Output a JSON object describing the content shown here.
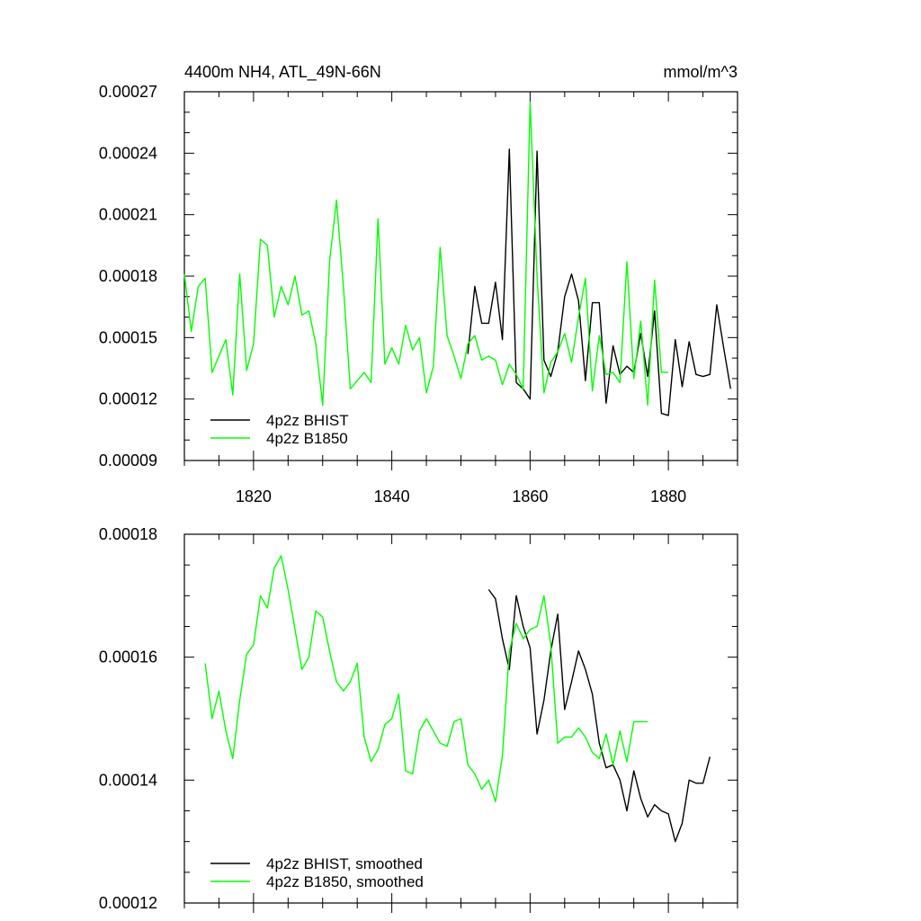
{
  "chart_data": [
    {
      "type": "line",
      "title": "4400m NH4, ATL_49N-66N",
      "units": "mmol/m^3",
      "xlabel": "",
      "ylabel": "",
      "xlim": [
        1810,
        1890
      ],
      "ylim": [
        9e-05,
        0.00027
      ],
      "yticks": [
        "0.00009",
        "0.00012",
        "0.00015",
        "0.00018",
        "0.00021",
        "0.00024",
        "0.00027"
      ],
      "xticks": [
        "1820",
        "1840",
        "1860",
        "1880"
      ],
      "legend_position": "bottom-left",
      "series": [
        {
          "name": "4p2z BHIST",
          "color": "#000000",
          "x": [
            1851,
            1852,
            1853,
            1854,
            1855,
            1856,
            1857,
            1858,
            1859,
            1860,
            1861,
            1862,
            1863,
            1864,
            1865,
            1866,
            1867,
            1868,
            1869,
            1870,
            1871,
            1872,
            1873,
            1874,
            1875,
            1876,
            1877,
            1878,
            1879,
            1880,
            1881,
            1882,
            1883,
            1884,
            1885,
            1886,
            1887,
            1888,
            1889
          ],
          "values": [
            0.000142,
            0.000175,
            0.000157,
            0.000157,
            0.000177,
            0.000149,
            0.000242,
            0.000128,
            0.000125,
            0.00012,
            0.000241,
            0.000139,
            0.000131,
            0.000143,
            0.00017,
            0.000181,
            0.000168,
            0.000129,
            0.000167,
            0.000167,
            0.000118,
            0.000146,
            0.000132,
            0.000136,
            0.000133,
            0.000152,
            0.000131,
            0.000163,
            0.000113,
            0.000112,
            0.000149,
            0.000126,
            0.000148,
            0.000132,
            0.000131,
            0.000132,
            0.000166,
            0.000145,
            0.000125
          ]
        },
        {
          "name": "4p2z B1850",
          "color": "#00ff00",
          "x": [
            1810,
            1811,
            1812,
            1813,
            1814,
            1815,
            1816,
            1817,
            1818,
            1819,
            1820,
            1821,
            1822,
            1823,
            1824,
            1825,
            1826,
            1827,
            1828,
            1829,
            1830,
            1831,
            1832,
            1833,
            1834,
            1835,
            1836,
            1837,
            1838,
            1839,
            1840,
            1841,
            1842,
            1843,
            1844,
            1845,
            1846,
            1847,
            1848,
            1849,
            1850,
            1851,
            1852,
            1853,
            1854,
            1855,
            1856,
            1857,
            1858,
            1859,
            1860,
            1861,
            1862,
            1863,
            1864,
            1865,
            1866,
            1867,
            1868,
            1869,
            1870,
            1871,
            1872,
            1873,
            1874,
            1875,
            1876,
            1877,
            1878,
            1879,
            1880
          ],
          "values": [
            0.000181,
            0.000153,
            0.000175,
            0.000179,
            0.000133,
            0.000141,
            0.000149,
            0.000122,
            0.000181,
            0.000134,
            0.000147,
            0.000198,
            0.000195,
            0.00016,
            0.000175,
            0.000166,
            0.00018,
            0.000161,
            0.000163,
            0.000147,
            0.000117,
            0.000187,
            0.000217,
            0.000175,
            0.000125,
            0.000129,
            0.000133,
            0.000128,
            0.000208,
            0.000137,
            0.000145,
            0.000137,
            0.000156,
            0.000144,
            0.00015,
            0.000123,
            0.000136,
            0.000194,
            0.000151,
            0.000141,
            0.00013,
            0.000147,
            0.000151,
            0.000139,
            0.000141,
            0.000139,
            0.000127,
            0.000137,
            0.000132,
            0.000125,
            0.000265,
            0.00018,
            0.000123,
            0.000138,
            0.000143,
            0.000152,
            0.000138,
            0.00016,
            0.000179,
            0.000124,
            0.000151,
            0.000132,
            0.000133,
            0.000128,
            0.000187,
            0.00013,
            0.000158,
            0.000117,
            0.000178,
            0.000133,
            0.000133
          ]
        }
      ]
    },
    {
      "type": "line",
      "title": "",
      "xlabel": "",
      "ylabel": "",
      "xlim": [
        1810,
        1890
      ],
      "ylim": [
        0.00012,
        0.00018
      ],
      "yticks": [
        "0.00012",
        "0.00014",
        "0.00016",
        "0.00018"
      ],
      "legend_position": "bottom-left",
      "series": [
        {
          "name": "4p2z BHIST, smoothed",
          "color": "#000000",
          "x": [
            1854,
            1855,
            1856,
            1857,
            1858,
            1859,
            1860,
            1861,
            1862,
            1863,
            1864,
            1865,
            1866,
            1867,
            1868,
            1869,
            1870,
            1871,
            1872,
            1873,
            1874,
            1875,
            1876,
            1877,
            1878,
            1879,
            1880,
            1881,
            1882,
            1883,
            1884,
            1885,
            1886
          ],
          "values": [
            0.000171,
            0.0001695,
            0.000163,
            0.000158,
            0.00017,
            0.000165,
            0.0001615,
            0.0001475,
            0.000153,
            0.000161,
            0.000167,
            0.0001515,
            0.000156,
            0.000161,
            0.000158,
            0.000154,
            0.000146,
            0.000142,
            0.0001425,
            0.00014,
            0.000135,
            0.0001415,
            0.000137,
            0.000134,
            0.000136,
            0.000135,
            0.0001345,
            0.00013,
            0.000133,
            0.00014,
            0.0001395,
            0.0001395,
            0.0001438
          ]
        },
        {
          "name": "4p2z B1850, smoothed",
          "color": "#00ff00",
          "x": [
            1813,
            1814,
            1815,
            1816,
            1817,
            1818,
            1819,
            1820,
            1821,
            1822,
            1823,
            1824,
            1825,
            1826,
            1827,
            1828,
            1829,
            1830,
            1831,
            1832,
            1833,
            1834,
            1835,
            1836,
            1837,
            1838,
            1839,
            1840,
            1841,
            1842,
            1843,
            1844,
            1845,
            1846,
            1847,
            1848,
            1849,
            1850,
            1851,
            1852,
            1853,
            1854,
            1855,
            1856,
            1857,
            1858,
            1859,
            1860,
            1861,
            1862,
            1863,
            1864,
            1865,
            1866,
            1867,
            1868,
            1869,
            1870,
            1871,
            1872,
            1873,
            1874,
            1875,
            1876,
            1877
          ],
          "values": [
            0.000159,
            0.00015,
            0.0001545,
            0.000148,
            0.0001435,
            0.000153,
            0.0001605,
            0.000162,
            0.00017,
            0.000168,
            0.0001745,
            0.0001765,
            0.000171,
            0.0001645,
            0.000158,
            0.00016,
            0.0001675,
            0.0001665,
            0.000161,
            0.000156,
            0.0001545,
            0.000156,
            0.000159,
            0.000147,
            0.000143,
            0.000145,
            0.000149,
            0.00015,
            0.000154,
            0.0001415,
            0.000141,
            0.000148,
            0.00015,
            0.000148,
            0.000146,
            0.0001455,
            0.0001495,
            0.00015,
            0.0001425,
            0.000141,
            0.0001385,
            0.00014,
            0.0001365,
            0.000144,
            0.000161,
            0.0001655,
            0.000163,
            0.0001645,
            0.000165,
            0.00017,
            0.000162,
            0.000146,
            0.000147,
            0.000147,
            0.0001485,
            0.000147,
            0.0001445,
            0.0001435,
            0.0001475,
            0.0001425,
            0.000148,
            0.000143,
            0.0001495,
            0.0001495,
            0.0001495
          ]
        }
      ]
    }
  ]
}
